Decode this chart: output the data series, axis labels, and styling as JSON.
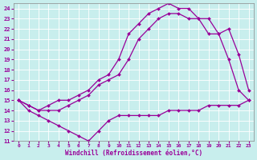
{
  "xlabel": "Windchill (Refroidissement éolien,°C)",
  "bg_color": "#c8eeed",
  "line_color": "#990099",
  "xlim": [
    -0.5,
    23.5
  ],
  "ylim": [
    11,
    24.5
  ],
  "xticks": [
    0,
    1,
    2,
    3,
    4,
    5,
    6,
    7,
    8,
    9,
    10,
    11,
    12,
    13,
    14,
    15,
    16,
    17,
    18,
    19,
    20,
    21,
    22,
    23
  ],
  "yticks": [
    11,
    12,
    13,
    14,
    15,
    16,
    17,
    18,
    19,
    20,
    21,
    22,
    23,
    24
  ],
  "line1_y": [
    15,
    14,
    13.5,
    13,
    12.5,
    12,
    11.5,
    11,
    12,
    13,
    13.5,
    13.5,
    13.5,
    13.5,
    13.5,
    14,
    14,
    14,
    14,
    14.5,
    14.5,
    14.5,
    14.5,
    15
  ],
  "line2_y": [
    15,
    14.5,
    14,
    14,
    14,
    14.5,
    15,
    15.5,
    16.5,
    17,
    17.5,
    19,
    21,
    22,
    23,
    23.5,
    23.5,
    23,
    23,
    21.5,
    21.5,
    19,
    16,
    15
  ],
  "line3_y": [
    15,
    14.5,
    14,
    14.5,
    15,
    15,
    15.5,
    16,
    17,
    17.5,
    19,
    21.5,
    22.5,
    23.5,
    24,
    24.5,
    24,
    24,
    23,
    23,
    21.5,
    22,
    19.5,
    16
  ]
}
